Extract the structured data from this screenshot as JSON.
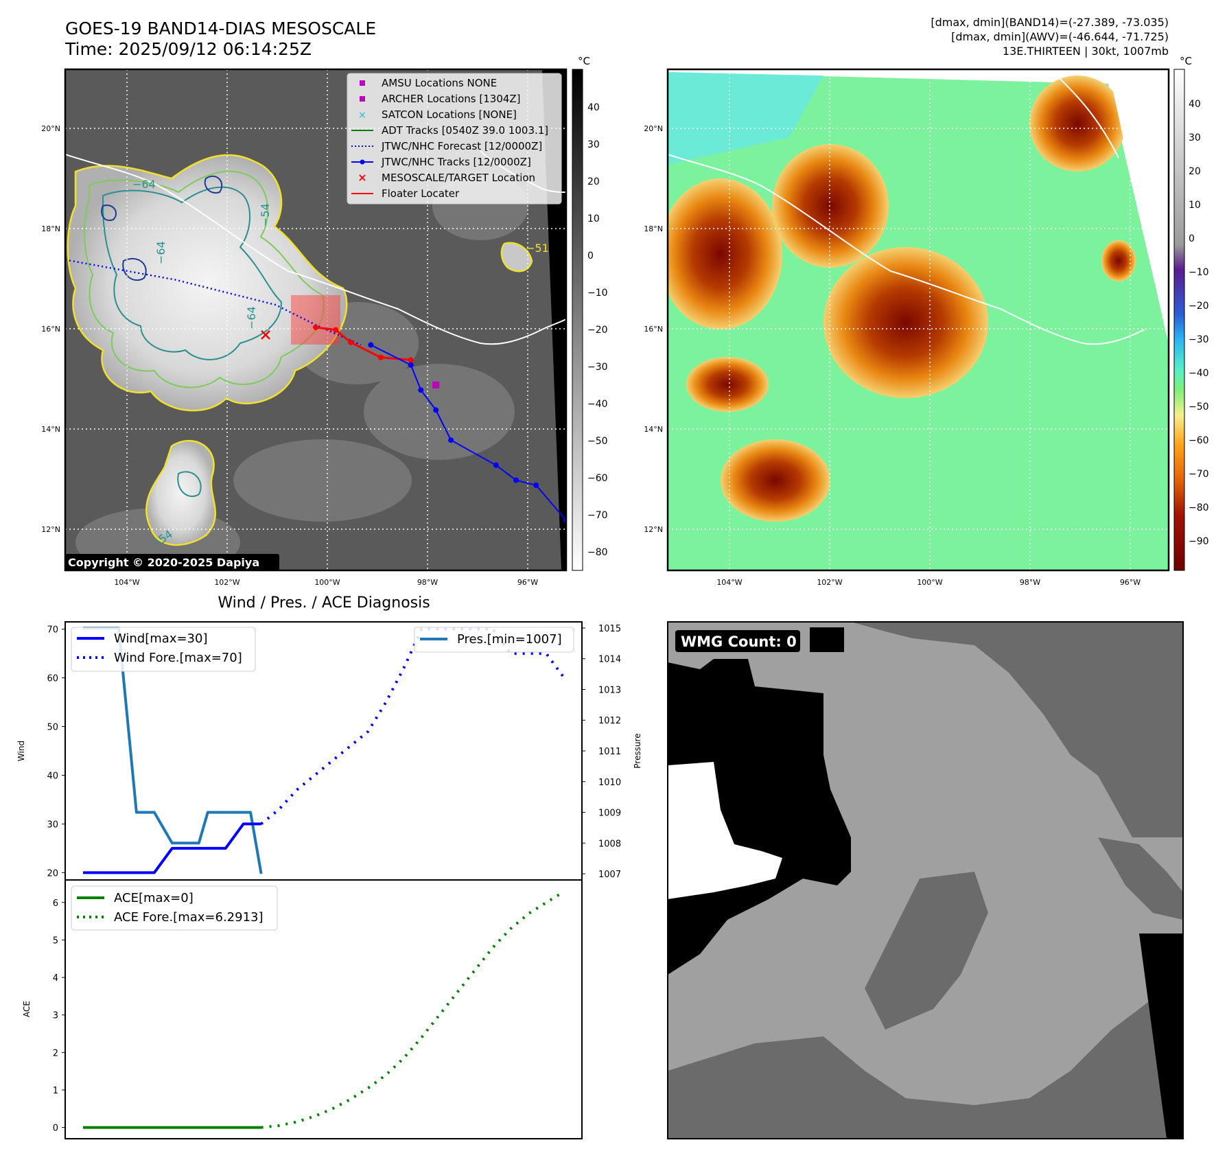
{
  "header": {
    "title_line1": "GOES-19 BAND14-DIAS MESOSCALE",
    "title_line2": "Time: 2025/09/12 06:14:25Z",
    "info_line1": "[dmax, dmin](BAND14)=(-27.389, -73.035)",
    "info_line2": "[dmax, dmin](AWV)=(-46.644, -71.725)",
    "info_line3": "13E.THIRTEEN | 30kt, 1007mb"
  },
  "map_axes": {
    "lat_labels": [
      "20°N",
      "18°N",
      "16°N",
      "14°N",
      "12°N"
    ],
    "lon_labels": [
      "104°W",
      "102°W",
      "100°W",
      "98°W",
      "96°W"
    ]
  },
  "ir_panel": {
    "colorbar_unit": "°C",
    "colorbar_ticks": [
      "40",
      "30",
      "20",
      "10",
      "0",
      "−10",
      "−20",
      "−30",
      "−40",
      "−50",
      "−60",
      "−70",
      "−80"
    ],
    "copyright": "Copyright © 2020-2025 Dapiya",
    "contour_labels": [
      "−64",
      "−54",
      "−64",
      "−64",
      "−54",
      "−51"
    ],
    "legend": [
      {
        "label": "AMSU Locations NONE",
        "color": "#bf00bf",
        "marker": "square"
      },
      {
        "label": "ARCHER Locations [1304Z]",
        "color": "#bf00bf",
        "marker": "square"
      },
      {
        "label": "SATCON Locations [NONE]",
        "color": "#17becf",
        "marker": "x"
      },
      {
        "label": "ADT Tracks [0540Z 39.0 1003.1]",
        "color": "#008000",
        "marker": "line"
      },
      {
        "label": "JTWC/NHC Forecast [12/0000Z]",
        "color": "#0000ff",
        "marker": "dotted"
      },
      {
        "label": "JTWC/NHC Tracks [12/0000Z]",
        "color": "#0000ff",
        "marker": "line-dot"
      },
      {
        "label": "MESOSCALE/TARGET Location",
        "color": "#ff0000",
        "marker": "x"
      },
      {
        "label": "Floater Locater",
        "color": "#ff0000",
        "marker": "line"
      }
    ],
    "track_points": [
      {
        "lon": -99.1,
        "lat": 15.8
      },
      {
        "lon": -98.3,
        "lat": 15.4
      },
      {
        "lon": -98.1,
        "lat": 14.9
      },
      {
        "lon": -97.8,
        "lat": 14.5
      },
      {
        "lon": -97.5,
        "lat": 13.9
      },
      {
        "lon": -96.6,
        "lat": 13.4
      },
      {
        "lon": -96.2,
        "lat": 13.1
      },
      {
        "lon": -95.8,
        "lat": 13.0
      },
      {
        "lon": -95.2,
        "lat": 12.3
      }
    ],
    "forecast_track": [
      {
        "lon": -105.2,
        "lat": 17.5
      },
      {
        "lon": -103.0,
        "lat": 17.1
      },
      {
        "lon": -101.0,
        "lat": 16.6
      },
      {
        "lon": -100.2,
        "lat": 16.2
      },
      {
        "lon": -99.3,
        "lat": 15.8
      }
    ],
    "floater_track": [
      {
        "lon": -100.2,
        "lat": 16.15
      },
      {
        "lon": -99.8,
        "lat": 16.1
      },
      {
        "lon": -99.5,
        "lat": 15.85
      },
      {
        "lon": -98.9,
        "lat": 15.55
      },
      {
        "lon": -98.3,
        "lat": 15.5
      }
    ],
    "target_location": {
      "lon": -101.2,
      "lat": 16.0
    },
    "archer_location": {
      "lon": -97.8,
      "lat": 15.0
    },
    "colors": {
      "track": "#0000ff",
      "floater": "#ff0000",
      "contour_cold": "#1f3a93",
      "contour_mid": "#2a8f8f",
      "contour_warm": "#7ccc5a",
      "contour_edge": "#f2e12b"
    }
  },
  "awv_panel": {
    "colorbar_unit": "°C",
    "colorbar_ticks": [
      "40",
      "30",
      "20",
      "10",
      "0",
      "−10",
      "−20",
      "−30",
      "−40",
      "−50",
      "−60",
      "−70",
      "−80",
      "−90"
    ]
  },
  "diagnosis": {
    "title": "Wind / Pres. / ACE Diagnosis",
    "wind_ylabel": "Wind",
    "pressure_ylabel": "Pressure",
    "ace_ylabel": "ACE",
    "wind_ticks": [
      "70",
      "60",
      "50",
      "40",
      "30",
      "20"
    ],
    "pressure_ticks": [
      "1015",
      "1014",
      "1013",
      "1012",
      "1011",
      "1010",
      "1009",
      "1008",
      "1007"
    ],
    "ace_ticks": [
      "6",
      "5",
      "4",
      "3",
      "2",
      "1",
      "0"
    ],
    "legend_wind": "Wind[max=30]",
    "legend_wind_fore": "Wind Fore.[max=70]",
    "legend_pres": "Pres.[min=1007]",
    "legend_ace": "ACE[max=0]",
    "legend_ace_fore": "ACE Fore.[max=6.2913]",
    "colors": {
      "wind": "#0000ff",
      "pressure": "#1f77b4",
      "ace": "#008000"
    }
  },
  "wmg_panel": {
    "badge": "WMG Count: 0"
  },
  "chart_data": [
    {
      "type": "line",
      "title": "Wind / Pres. / ACE Diagnosis",
      "ylabel": "Wind",
      "ylim": [
        18.5,
        71.5
      ],
      "xlim": [
        -1,
        28
      ],
      "series": [
        {
          "name": "Wind[max=30]",
          "x": [
            0,
            1,
            2,
            3,
            4,
            5,
            6,
            7,
            8,
            9,
            10
          ],
          "values": [
            20,
            20,
            20,
            20,
            20,
            25,
            25,
            25,
            25,
            30,
            30
          ]
        },
        {
          "name": "Wind Fore.[max=70]",
          "x": [
            10,
            11,
            12,
            13,
            14,
            15,
            16,
            17,
            18,
            19,
            20,
            21,
            22,
            23,
            24,
            25,
            26,
            27
          ],
          "values": [
            30,
            33,
            37,
            40,
            43,
            46,
            49,
            55,
            62,
            70,
            70,
            70,
            70,
            70,
            65,
            65,
            65,
            60
          ]
        }
      ]
    },
    {
      "type": "line",
      "ylabel": "Pressure",
      "ylim": [
        1006.8,
        1015.2
      ],
      "series": [
        {
          "name": "Pres.[min=1007]",
          "x": [
            0,
            1,
            2,
            2.5,
            3,
            4,
            5,
            6,
            6.5,
            7,
            8,
            9,
            9.4,
            10
          ],
          "values": [
            1015,
            1015,
            1015,
            1012,
            1009,
            1009,
            1008,
            1008,
            1008,
            1009,
            1009,
            1009,
            1009,
            1007
          ]
        }
      ]
    },
    {
      "type": "line",
      "ylabel": "ACE",
      "ylim": [
        -0.3,
        6.6
      ],
      "series": [
        {
          "name": "ACE[max=0]",
          "x": [
            0,
            2,
            4,
            6,
            8,
            10
          ],
          "values": [
            0,
            0,
            0,
            0,
            0,
            0
          ]
        },
        {
          "name": "ACE Fore.[max=6.2913]",
          "x": [
            10,
            11,
            12,
            13,
            14,
            15,
            16,
            17,
            18,
            19,
            20,
            21,
            22,
            23,
            24,
            25,
            26,
            27
          ],
          "values": [
            0,
            0.05,
            0.15,
            0.3,
            0.5,
            0.75,
            1.05,
            1.4,
            1.85,
            2.4,
            3.0,
            3.6,
            4.2,
            4.8,
            5.3,
            5.7,
            6.0,
            6.29
          ]
        }
      ]
    }
  ]
}
